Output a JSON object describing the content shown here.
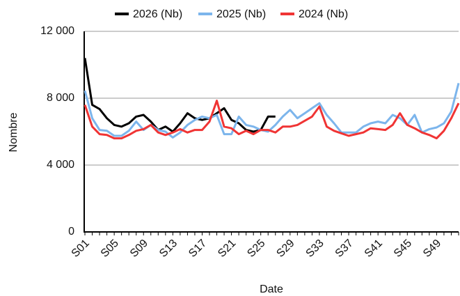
{
  "chart_data": {
    "type": "line",
    "x_label": "Date",
    "y_label": "Nombre",
    "legend": "top",
    "grid": true,
    "categories": [
      "S01",
      null,
      null,
      null,
      "S05",
      null,
      null,
      null,
      "S09",
      null,
      null,
      null,
      "S13",
      null,
      null,
      null,
      "S17",
      null,
      null,
      null,
      "S21",
      null,
      null,
      null,
      "S25",
      null,
      null,
      null,
      "S29",
      null,
      null,
      null,
      "S33",
      null,
      null,
      null,
      "S37",
      null,
      null,
      null,
      "S41",
      null,
      null,
      null,
      "S45",
      null,
      null,
      null,
      "S49",
      null,
      null,
      null
    ],
    "ylim": [
      0,
      12000
    ],
    "yticks": [
      0,
      {
        "value": 4000,
        "label": "4 000"
      },
      {
        "value": 8000,
        "label": "8 000"
      },
      {
        "value": 12000,
        "label": "12 000"
      }
    ],
    "series": [
      {
        "name": "2026 (Nb)",
        "color": "#000000",
        "values": [
          10400,
          7600,
          7350,
          6800,
          6400,
          6300,
          6500,
          6900,
          7000,
          6600,
          6100,
          6300,
          6000,
          6500,
          7100,
          6800,
          6700,
          6800,
          7100,
          7400,
          6700,
          6500,
          6100,
          6000,
          6100,
          6900,
          6900,
          null,
          null,
          null,
          null,
          null,
          null,
          null,
          null,
          null,
          null,
          null,
          null,
          null,
          null,
          null,
          null,
          null,
          null,
          null,
          null,
          null,
          null,
          null,
          null,
          null
        ]
      },
      {
        "name": "2025 (Nb)",
        "color": "#7cb5ec",
        "values": [
          8450,
          6800,
          6100,
          6050,
          5750,
          5750,
          6050,
          6600,
          6100,
          6400,
          6100,
          6000,
          5650,
          5950,
          6400,
          6700,
          6900,
          6800,
          7000,
          5850,
          5850,
          6900,
          6400,
          6300,
          6100,
          6000,
          6400,
          6900,
          7300,
          6800,
          7100,
          7400,
          7700,
          7000,
          6500,
          5950,
          5950,
          5950,
          6300,
          6500,
          6600,
          6500,
          7000,
          6800,
          6400,
          7000,
          5950,
          6150,
          6250,
          6500,
          7200,
          8900
        ]
      },
      {
        "name": "2024 (Nb)",
        "color": "#f03434",
        "values": [
          7600,
          6300,
          5850,
          5800,
          5600,
          5600,
          5800,
          6050,
          6150,
          6400,
          5950,
          5800,
          5950,
          6150,
          5950,
          6100,
          6100,
          6600,
          7850,
          6300,
          6200,
          5850,
          6050,
          5850,
          6100,
          6100,
          5950,
          6300,
          6300,
          6400,
          6650,
          6900,
          7500,
          6300,
          6050,
          5900,
          5750,
          5850,
          5950,
          6200,
          6150,
          6100,
          6400,
          7100,
          6400,
          6200,
          5950,
          5800,
          5600,
          6050,
          6800,
          7700
        ]
      }
    ]
  }
}
